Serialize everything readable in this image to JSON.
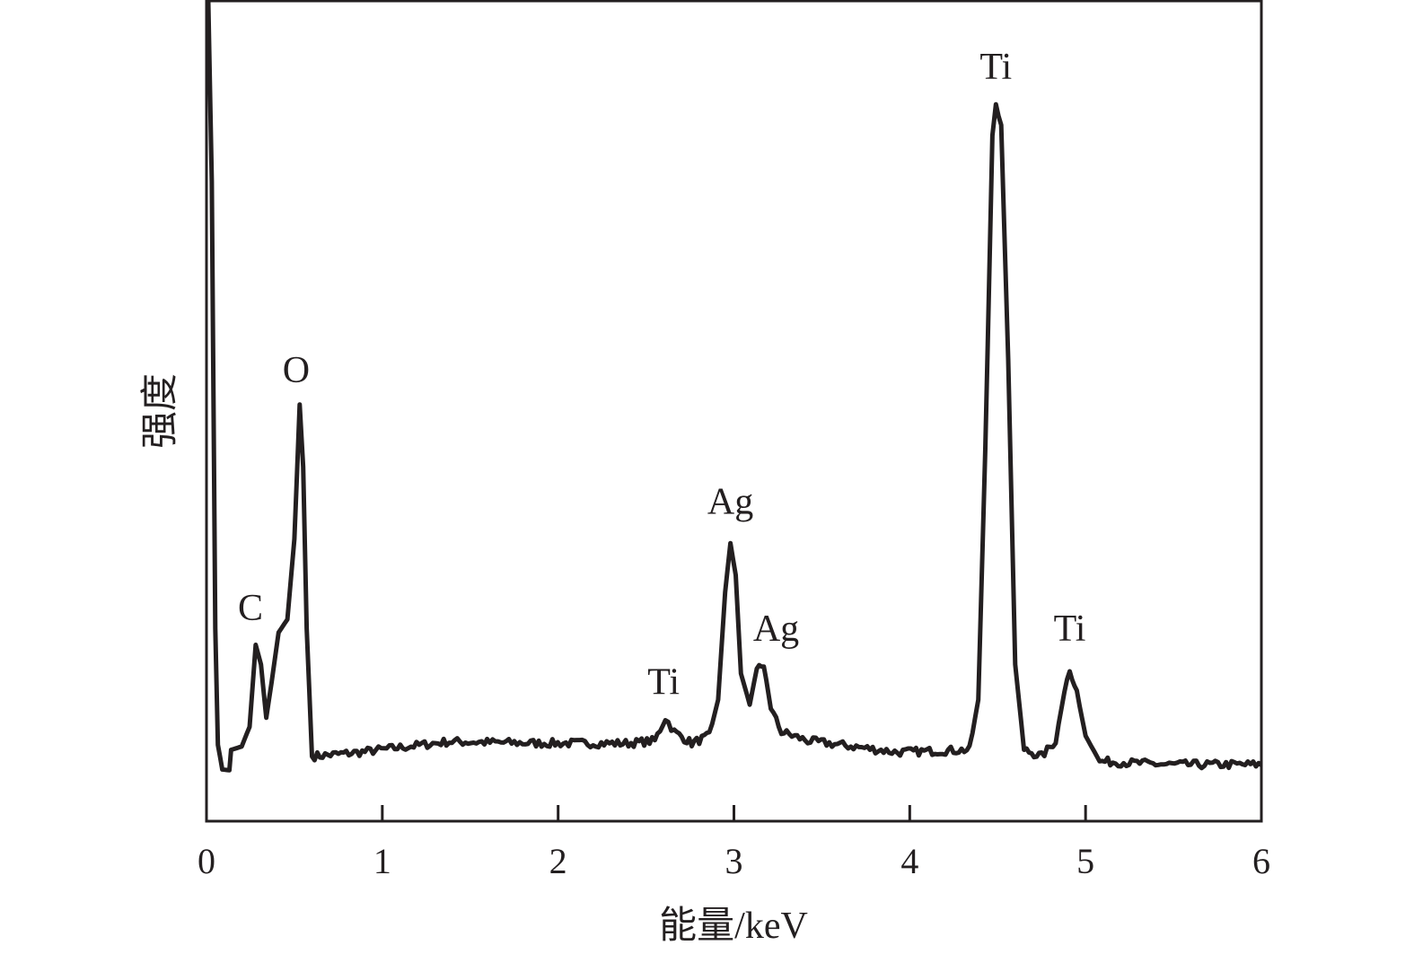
{
  "chart_data": {
    "type": "line",
    "title": "",
    "xlabel": "能量/keV",
    "ylabel": "强度",
    "xlim": [
      0,
      6
    ],
    "ylim": [
      0,
      100
    ],
    "x_ticks": [
      "0",
      "1",
      "2",
      "3",
      "4",
      "5",
      "6"
    ],
    "y_ticks_labeled": false,
    "grid": false,
    "line_color": "#231f20",
    "series": [
      {
        "x": [
          0.01,
          0.03,
          0.05,
          0.065,
          0.09,
          0.13,
          0.14,
          0.2,
          0.245,
          0.28,
          0.31,
          0.34,
          0.37,
          0.41,
          0.46,
          0.5,
          0.53,
          0.55,
          0.57,
          0.6,
          0.87,
          1.38,
          1.89,
          2.4,
          2.55,
          2.61,
          2.66,
          2.76,
          2.86,
          2.91,
          2.95,
          2.98,
          3.01,
          3.04,
          3.09,
          3.13,
          3.17,
          3.21,
          3.27,
          3.42,
          3.68,
          3.93,
          4.34,
          4.39,
          4.43,
          4.47,
          4.49,
          4.52,
          4.56,
          4.6,
          4.65,
          4.75,
          4.83,
          4.88,
          4.91,
          4.95,
          5.0,
          5.08,
          5.46,
          6.0
        ],
        "y": [
          100,
          78,
          23.5,
          9.3,
          6.3,
          6.2,
          8.7,
          9.1,
          11.5,
          21.5,
          19.1,
          12.6,
          16.9,
          23,
          24.6,
          34.4,
          50.8,
          43.2,
          23.5,
          7.9,
          8.4,
          9.7,
          9.5,
          9.5,
          9.8,
          12.6,
          10.9,
          9.5,
          10.4,
          14.8,
          27.9,
          33.9,
          30,
          18,
          14.2,
          18.6,
          19.1,
          13.7,
          10.9,
          9.8,
          9.1,
          8.4,
          8.7,
          14.8,
          45.4,
          83.6,
          87.4,
          84.7,
          56.3,
          19.1,
          8.7,
          7.9,
          9.8,
          15.8,
          18.6,
          15.8,
          10.4,
          7.3,
          6.9,
          6.9
        ]
      }
    ],
    "annotations": [
      {
        "text": "C",
        "x": 0.25,
        "y": 24.5
      },
      {
        "text": "O",
        "x": 0.51,
        "y": 53.5
      },
      {
        "text": "Ti",
        "x": 2.6,
        "y": 15.5
      },
      {
        "text": "Ag",
        "x": 2.98,
        "y": 37.5
      },
      {
        "text": "Ag",
        "x": 3.24,
        "y": 22
      },
      {
        "text": "Ti",
        "x": 4.49,
        "y": 90.5
      },
      {
        "text": "Ti",
        "x": 4.91,
        "y": 22
      }
    ]
  }
}
